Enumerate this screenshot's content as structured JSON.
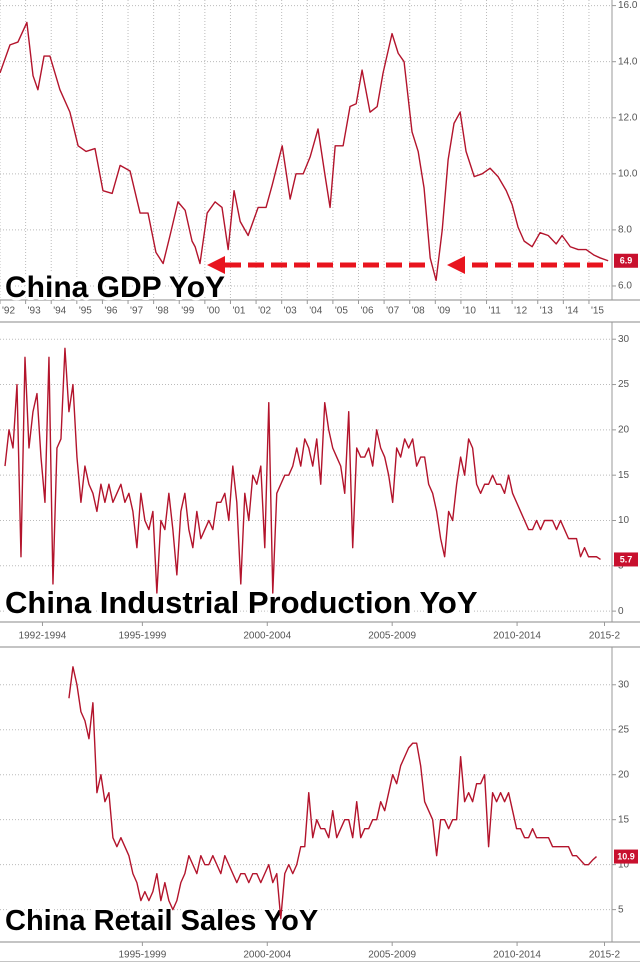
{
  "chart_data": [
    {
      "type": "line",
      "title": "China GDP YoY",
      "color": "#b3142c",
      "grid": "both",
      "xlim": [
        1992,
        2015.9
      ],
      "ylim": [
        5.5,
        16.2
      ],
      "yticks": [
        {
          "value": 6,
          "label": "6.0"
        },
        {
          "value": 8,
          "label": "8.0"
        },
        {
          "value": 10,
          "label": "10.0"
        },
        {
          "value": 12,
          "label": "12.0"
        },
        {
          "value": 14,
          "label": "14.0"
        },
        {
          "value": 16,
          "label": "16.0"
        }
      ],
      "xticks": [
        {
          "value": 1992,
          "label": "'92"
        },
        {
          "value": 1993,
          "label": "'93"
        },
        {
          "value": 1994,
          "label": "'94"
        },
        {
          "value": 1995,
          "label": "'95"
        },
        {
          "value": 1996,
          "label": "'96"
        },
        {
          "value": 1997,
          "label": "'97"
        },
        {
          "value": 1998,
          "label": "'98"
        },
        {
          "value": 1999,
          "label": "'99"
        },
        {
          "value": 2000,
          "label": "'00"
        },
        {
          "value": 2001,
          "label": "'01"
        },
        {
          "value": 2002,
          "label": "'02"
        },
        {
          "value": 2003,
          "label": "'03"
        },
        {
          "value": 2004,
          "label": "'04"
        },
        {
          "value": 2005,
          "label": "'05"
        },
        {
          "value": 2006,
          "label": "'06"
        },
        {
          "value": 2007,
          "label": "'07"
        },
        {
          "value": 2008,
          "label": "'08"
        },
        {
          "value": 2009,
          "label": "'09"
        },
        {
          "value": 2010,
          "label": "'10"
        },
        {
          "value": 2011,
          "label": "'11"
        },
        {
          "value": 2012,
          "label": "'12"
        },
        {
          "value": 2013,
          "label": "'13"
        },
        {
          "value": 2014,
          "label": "'14"
        },
        {
          "value": 2015,
          "label": "'15"
        }
      ],
      "x": [
        1992.0,
        1992.39,
        1992.7,
        1993.05,
        1993.29,
        1993.48,
        1993.72,
        1993.95,
        1994.34,
        1994.73,
        1995.05,
        1995.36,
        1995.71,
        1996.02,
        1996.38,
        1996.69,
        1997.08,
        1997.47,
        1997.78,
        1998.09,
        1998.37,
        1998.64,
        1998.95,
        1999.23,
        1999.5,
        1999.62,
        1999.81,
        2000.09,
        2000.4,
        2000.67,
        2000.91,
        2001.14,
        2001.38,
        2001.69,
        2002.08,
        2002.39,
        2002.63,
        2003.02,
        2003.33,
        2003.56,
        2003.84,
        2004.11,
        2004.42,
        2004.7,
        2004.89,
        2005.09,
        2005.4,
        2005.67,
        2005.91,
        2006.14,
        2006.45,
        2006.73,
        2006.96,
        2007.31,
        2007.55,
        2007.78,
        2008.09,
        2008.33,
        2008.56,
        2008.8,
        2009.03,
        2009.27,
        2009.5,
        2009.73,
        2009.97,
        2010.2,
        2010.52,
        2010.83,
        2011.14,
        2011.45,
        2011.77,
        2012.0,
        2012.23,
        2012.47,
        2012.78,
        2013.09,
        2013.41,
        2013.72,
        2013.95,
        2014.27,
        2014.58,
        2014.89,
        2015.2,
        2015.44,
        2015.75
      ],
      "values": [
        13.6,
        14.6,
        14.7,
        15.4,
        13.5,
        13.0,
        14.2,
        14.2,
        13.0,
        12.2,
        11.0,
        10.8,
        10.9,
        9.4,
        9.3,
        10.3,
        10.1,
        8.6,
        8.6,
        7.2,
        6.8,
        7.8,
        9.0,
        8.7,
        7.6,
        7.4,
        6.8,
        8.6,
        9.0,
        8.8,
        7.3,
        9.4,
        8.3,
        7.8,
        8.8,
        8.8,
        9.6,
        11.0,
        9.1,
        10.0,
        10.0,
        10.6,
        11.6,
        9.9,
        8.8,
        11.0,
        11.0,
        12.4,
        12.5,
        13.7,
        12.2,
        12.4,
        13.6,
        15.0,
        14.3,
        14.0,
        11.5,
        10.8,
        9.5,
        7.0,
        6.2,
        8.0,
        10.5,
        11.8,
        12.2,
        10.8,
        9.9,
        10.0,
        10.2,
        9.9,
        9.4,
        8.9,
        8.1,
        7.6,
        7.4,
        7.9,
        7.8,
        7.5,
        7.8,
        7.4,
        7.3,
        7.3,
        7.1,
        7.0,
        6.9
      ]
    },
    {
      "type": "line",
      "title": "China Industrial Production YoY",
      "color": "#b3142c",
      "grid": "y",
      "xlim": [
        1991.8,
        2016.3
      ],
      "ylim": [
        -1.2,
        31.9
      ],
      "yticks": [
        0,
        5,
        10,
        15,
        20,
        25,
        30
      ],
      "xticks": [
        {
          "value": 1993.5,
          "label": "1992-1994"
        },
        {
          "value": 1997.5,
          "label": "1995-1999"
        },
        {
          "value": 2002.5,
          "label": "2000-2004"
        },
        {
          "value": 2007.5,
          "label": "2005-2009"
        },
        {
          "value": 2012.5,
          "label": "2010-2014"
        },
        {
          "value": 2016,
          "label": "2015-2"
        }
      ],
      "x": [
        1992.0,
        1992.16,
        1992.32,
        1992.48,
        1992.64,
        1992.8,
        1992.96,
        1993.12,
        1993.28,
        1993.44,
        1993.6,
        1993.76,
        1993.92,
        1994.08,
        1994.24,
        1994.4,
        1994.56,
        1994.72,
        1994.88,
        1995.04,
        1995.2,
        1995.36,
        1995.52,
        1995.68,
        1995.84,
        1996.0,
        1996.16,
        1996.32,
        1996.48,
        1996.64,
        1996.8,
        1996.96,
        1997.12,
        1997.28,
        1997.44,
        1997.6,
        1997.76,
        1997.92,
        1998.08,
        1998.24,
        1998.4,
        1998.56,
        1998.72,
        1998.88,
        1999.04,
        1999.2,
        1999.36,
        1999.52,
        1999.68,
        1999.84,
        2000.0,
        2000.16,
        2000.32,
        2000.48,
        2000.64,
        2000.8,
        2000.96,
        2001.12,
        2001.28,
        2001.44,
        2001.6,
        2001.76,
        2001.92,
        2002.08,
        2002.24,
        2002.4,
        2002.56,
        2002.72,
        2002.88,
        2003.04,
        2003.2,
        2003.36,
        2003.52,
        2003.68,
        2003.84,
        2004.0,
        2004.16,
        2004.32,
        2004.48,
        2004.64,
        2004.8,
        2004.96,
        2005.12,
        2005.28,
        2005.44,
        2005.6,
        2005.76,
        2005.92,
        2006.08,
        2006.24,
        2006.4,
        2006.56,
        2006.72,
        2006.88,
        2007.04,
        2007.2,
        2007.36,
        2007.52,
        2007.68,
        2007.84,
        2008.0,
        2008.16,
        2008.32,
        2008.48,
        2008.64,
        2008.8,
        2008.96,
        2009.12,
        2009.28,
        2009.44,
        2009.6,
        2009.76,
        2009.92,
        2010.08,
        2010.24,
        2010.4,
        2010.56,
        2010.72,
        2010.88,
        2011.04,
        2011.2,
        2011.36,
        2011.52,
        2011.68,
        2011.84,
        2012.0,
        2012.16,
        2012.32,
        2012.48,
        2012.64,
        2012.8,
        2012.96,
        2013.12,
        2013.28,
        2013.44,
        2013.6,
        2013.76,
        2013.92,
        2014.08,
        2014.24,
        2014.4,
        2014.56,
        2014.72,
        2014.88,
        2015.04,
        2015.2,
        2015.36,
        2015.52,
        2015.68,
        2015.84
      ],
      "values": [
        16,
        20,
        18,
        25,
        6,
        28,
        18,
        22,
        24,
        17,
        12,
        28,
        3,
        18,
        19,
        29,
        22,
        25,
        17,
        12,
        16,
        14,
        13,
        11,
        14,
        12,
        14,
        12,
        13,
        14,
        12,
        13,
        11,
        7,
        13,
        10,
        9,
        11,
        2,
        10,
        9,
        13,
        9,
        4,
        11,
        13,
        9,
        7,
        11,
        8,
        9,
        10,
        9,
        12,
        12,
        13,
        10,
        16,
        12,
        3,
        13,
        10,
        15,
        14,
        16,
        7,
        23,
        2,
        13,
        14,
        15,
        15,
        16,
        18,
        16,
        19,
        18,
        16,
        19,
        14,
        23,
        20,
        18,
        17,
        16,
        13,
        22,
        7,
        18,
        17,
        17,
        18,
        16,
        20,
        18,
        17,
        15,
        12,
        18,
        17,
        19,
        18,
        19,
        16,
        17,
        17,
        14,
        13,
        11,
        8,
        6,
        11,
        10,
        14,
        17,
        15,
        19,
        18,
        14,
        13,
        14,
        14,
        15,
        14,
        14,
        13,
        15,
        13,
        12,
        11,
        10,
        9,
        9,
        10,
        9,
        10,
        10,
        10,
        9,
        10,
        9,
        8,
        8,
        8,
        6,
        7,
        6,
        6,
        6,
        5.7
      ]
    },
    {
      "type": "line",
      "title": "China Retail Sales YoY",
      "color": "#b3142c",
      "grid": "y",
      "xlim": [
        1991.8,
        2016.3
      ],
      "ylim": [
        1.4,
        34.2
      ],
      "yticks": [
        5,
        10,
        15,
        20,
        25,
        30
      ],
      "xticks": [
        {
          "value": 1997.5,
          "label": "1995-1999"
        },
        {
          "value": 2002.5,
          "label": "2000-2004"
        },
        {
          "value": 2007.5,
          "label": "2005-2009"
        },
        {
          "value": 2012.5,
          "label": "2010-2014"
        },
        {
          "value": 2016,
          "label": "2015-2"
        }
      ],
      "x": [
        1994.56,
        1994.72,
        1994.88,
        1995.04,
        1995.2,
        1995.36,
        1995.52,
        1995.68,
        1995.84,
        1996.0,
        1996.16,
        1996.32,
        1996.48,
        1996.64,
        1996.8,
        1996.96,
        1997.12,
        1997.28,
        1997.44,
        1997.6,
        1997.76,
        1997.92,
        1998.08,
        1998.24,
        1998.4,
        1998.56,
        1998.72,
        1998.88,
        1999.04,
        1999.2,
        1999.36,
        1999.52,
        1999.68,
        1999.84,
        2000.0,
        2000.16,
        2000.32,
        2000.48,
        2000.64,
        2000.8,
        2000.96,
        2001.12,
        2001.28,
        2001.44,
        2001.6,
        2001.76,
        2001.92,
        2002.08,
        2002.24,
        2002.4,
        2002.56,
        2002.72,
        2002.88,
        2003.04,
        2003.2,
        2003.36,
        2003.52,
        2003.68,
        2003.84,
        2004.0,
        2004.16,
        2004.32,
        2004.48,
        2004.64,
        2004.8,
        2004.96,
        2005.12,
        2005.28,
        2005.44,
        2005.6,
        2005.76,
        2005.92,
        2006.08,
        2006.24,
        2006.4,
        2006.56,
        2006.72,
        2006.88,
        2007.04,
        2007.2,
        2007.36,
        2007.52,
        2007.68,
        2007.84,
        2008.0,
        2008.16,
        2008.32,
        2008.48,
        2008.64,
        2008.8,
        2008.96,
        2009.12,
        2009.28,
        2009.44,
        2009.6,
        2009.76,
        2009.92,
        2010.08,
        2010.24,
        2010.4,
        2010.56,
        2010.72,
        2010.88,
        2011.04,
        2011.2,
        2011.36,
        2011.52,
        2011.68,
        2011.84,
        2012.0,
        2012.16,
        2012.32,
        2012.48,
        2012.64,
        2012.8,
        2012.96,
        2013.12,
        2013.28,
        2013.44,
        2013.6,
        2013.76,
        2013.92,
        2014.08,
        2014.24,
        2014.4,
        2014.56,
        2014.72,
        2014.88,
        2015.04,
        2015.2,
        2015.36,
        2015.52,
        2015.68
      ],
      "values": [
        28.5,
        32,
        30,
        27,
        26,
        24,
        28,
        18,
        20,
        17,
        18,
        13,
        12,
        13,
        12,
        11,
        9,
        8,
        6,
        7,
        6,
        7,
        9,
        6,
        8,
        6,
        5,
        6,
        8,
        9,
        11,
        10,
        9,
        11,
        10,
        10,
        11,
        10,
        9,
        11,
        10,
        9,
        8,
        9,
        9,
        8,
        9,
        9,
        8,
        9,
        10,
        8,
        9,
        4,
        9,
        10,
        9,
        10,
        12,
        12,
        18,
        13,
        15,
        14,
        14,
        13,
        16,
        13,
        14,
        15,
        15,
        13,
        17,
        13,
        14,
        14,
        15,
        15,
        17,
        16,
        18,
        20,
        19,
        21,
        22,
        23,
        23.5,
        23.5,
        21,
        17,
        16,
        15,
        11,
        15,
        15,
        14,
        15,
        15,
        22,
        17,
        18,
        17,
        19,
        19,
        20,
        12,
        18,
        17,
        18,
        17,
        18,
        16,
        14,
        14,
        13,
        13,
        14,
        13,
        13,
        13,
        13,
        12,
        12,
        12,
        12,
        12,
        11,
        11,
        10.5,
        10,
        10,
        10.5,
        10.9
      ]
    }
  ]
}
